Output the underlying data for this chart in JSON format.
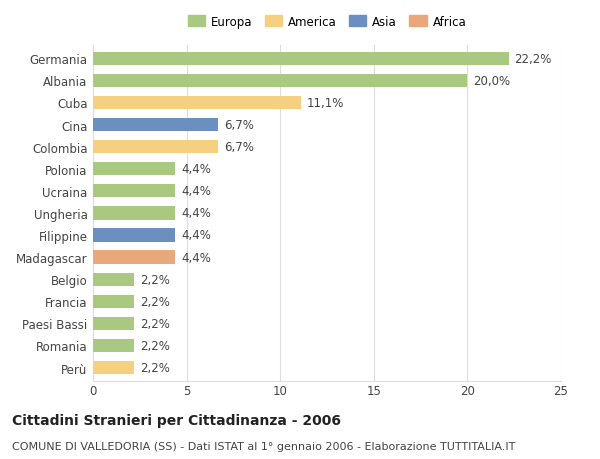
{
  "countries": [
    "Germania",
    "Albania",
    "Cuba",
    "Cina",
    "Colombia",
    "Polonia",
    "Ucraina",
    "Ungheria",
    "Filippine",
    "Madagascar",
    "Belgio",
    "Francia",
    "Paesi Bassi",
    "Romania",
    "Perù"
  ],
  "values": [
    22.2,
    20.0,
    11.1,
    6.7,
    6.7,
    4.4,
    4.4,
    4.4,
    4.4,
    4.4,
    2.2,
    2.2,
    2.2,
    2.2,
    2.2
  ],
  "labels": [
    "22,2%",
    "20,0%",
    "11,1%",
    "6,7%",
    "6,7%",
    "4,4%",
    "4,4%",
    "4,4%",
    "4,4%",
    "4,4%",
    "2,2%",
    "2,2%",
    "2,2%",
    "2,2%",
    "2,2%"
  ],
  "continents": [
    "Europa",
    "Europa",
    "America",
    "Asia",
    "America",
    "Europa",
    "Europa",
    "Europa",
    "Asia",
    "Africa",
    "Europa",
    "Europa",
    "Europa",
    "Europa",
    "America"
  ],
  "continent_colors": {
    "Europa": "#a8c97f",
    "America": "#f5d080",
    "Asia": "#6a8fc0",
    "Africa": "#e8a87c"
  },
  "legend_order": [
    "Europa",
    "America",
    "Asia",
    "Africa"
  ],
  "xlim": [
    0,
    25
  ],
  "xticks": [
    0,
    5,
    10,
    15,
    20,
    25
  ],
  "title": "Cittadini Stranieri per Cittadinanza - 2006",
  "subtitle": "COMUNE DI VALLEDORIA (SS) - Dati ISTAT al 1° gennaio 2006 - Elaborazione TUTTITALIA.IT",
  "background_color": "#ffffff",
  "grid_color": "#dddddd",
  "bar_height": 0.6,
  "label_fontsize": 8.5,
  "tick_fontsize": 8.5,
  "title_fontsize": 10,
  "subtitle_fontsize": 8
}
